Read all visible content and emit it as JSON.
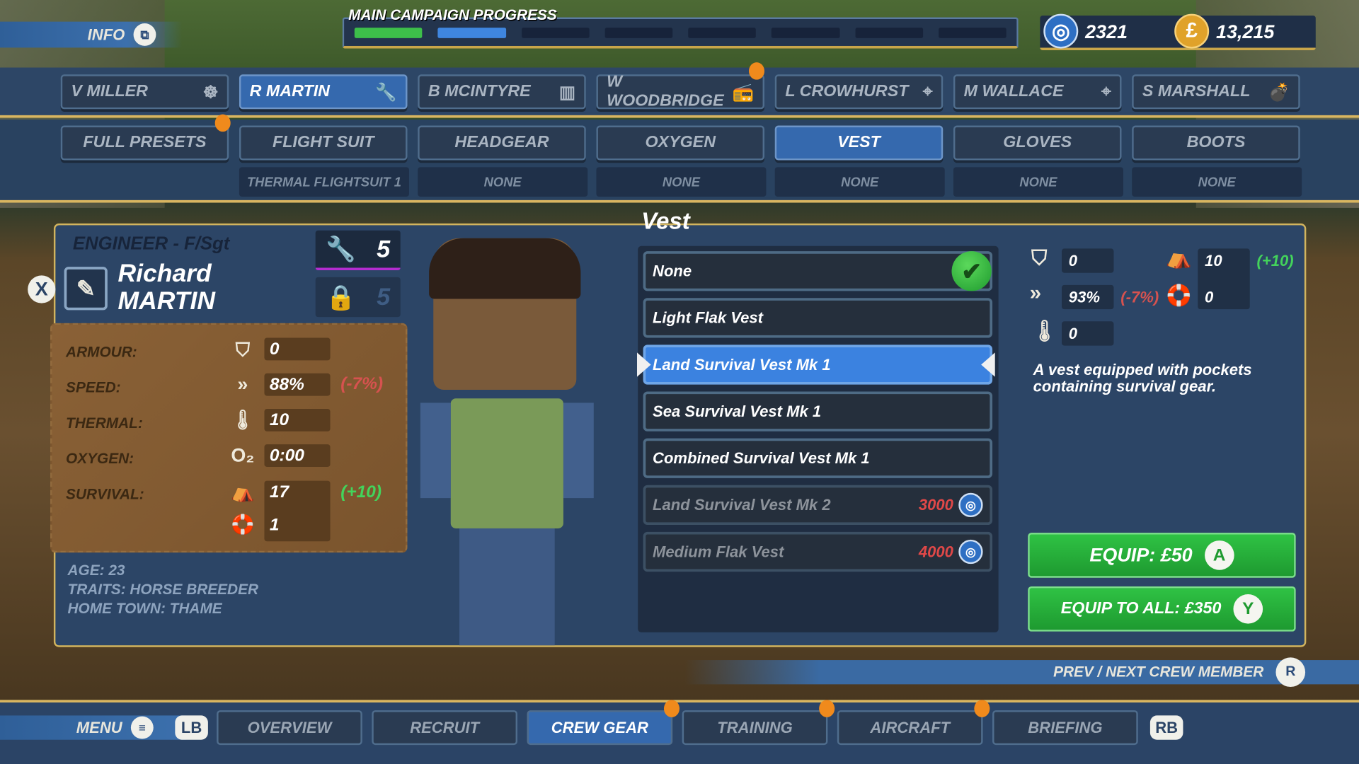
{
  "topbar": {
    "info_label": "INFO",
    "campaign_title": "MAIN CAMPAIGN PROGRESS",
    "campaign_segments_total": 8,
    "campaign_segments_complete": 1,
    "campaign_segments_in_progress": 1,
    "intel": "2321",
    "money": "13,215",
    "colors": {
      "complete": "#3dbf4a",
      "in_progress": "#3f86df"
    }
  },
  "crew_tabs": [
    {
      "label": "V MILLER",
      "icon": "steering-wheel-icon"
    },
    {
      "label": "R MARTIN",
      "icon": "wrench-icon",
      "active": true
    },
    {
      "label": "B MCINTYRE",
      "icon": "map-icon"
    },
    {
      "label": "W WOODBRIDGE",
      "icon": "radio-icon",
      "notify": true
    },
    {
      "label": "L CROWHURST",
      "icon": "crosshair-icon"
    },
    {
      "label": "M WALLACE",
      "icon": "crosshair-icon"
    },
    {
      "label": "S MARSHALL",
      "icon": "bomb-icon"
    }
  ],
  "gear_tabs": [
    {
      "label": "FULL PRESETS",
      "notify": true
    },
    {
      "label": "FLIGHT SUIT",
      "equipped": "THERMAL FLIGHTSUIT 1"
    },
    {
      "label": "HEADGEAR",
      "equipped": "NONE"
    },
    {
      "label": "OXYGEN",
      "equipped": "NONE"
    },
    {
      "label": "VEST",
      "equipped": "NONE",
      "active": true
    },
    {
      "label": "GLOVES",
      "equipped": "NONE"
    },
    {
      "label": "BOOTS",
      "equipped": "NONE"
    }
  ],
  "crew": {
    "role": "ENGINEER - F/Sgt",
    "first_name": "Richard",
    "last_name": "MARTIN",
    "skill_level": "5",
    "locked_level": "5",
    "close_button": "X",
    "stats": {
      "armour_label": "ARMOUR:",
      "armour": "0",
      "speed_label": "SPEED:",
      "speed": "88%",
      "speed_delta": "(-7%)",
      "thermal_label": "THERMAL:",
      "thermal": "10",
      "oxygen_label": "OXYGEN:",
      "oxygen": "0:00",
      "survival_label": "SURVIVAL:",
      "survival_land": "17",
      "survival_delta": "(+10)",
      "survival_sea": "1"
    },
    "age": "AGE: 23",
    "traits": "TRAITS: HORSE BREEDER",
    "home_town": "HOME TOWN: THAME"
  },
  "vest": {
    "title": "Vest",
    "items": [
      {
        "name": "None",
        "equipped": true
      },
      {
        "name": "Light Flak Vest"
      },
      {
        "name": "Land Survival Vest Mk 1",
        "selected": true
      },
      {
        "name": "Sea Survival Vest Mk 1"
      },
      {
        "name": "Combined Survival Vest Mk 1"
      },
      {
        "name": "Land Survival Vest Mk 2",
        "locked": true,
        "cost": "3000"
      },
      {
        "name": "Medium Flak Vest",
        "locked": true,
        "cost": "4000"
      }
    ],
    "preview": {
      "armour": "0",
      "speed": "93%",
      "speed_delta": "(-7%)",
      "thermal": "0",
      "survival_land": "10",
      "survival_delta": "(+10)",
      "survival_sea": "0"
    },
    "description": "A vest equipped with pockets containing survival gear.",
    "equip_label": "EQUIP: £50",
    "equip_button_glyph": "A",
    "equip_all_label": "EQUIP TO ALL: £350",
    "equip_all_button_glyph": "Y"
  },
  "prev_next": "PREV / NEXT CREW MEMBER",
  "bottom_nav": {
    "menu_label": "MENU",
    "lb": "LB",
    "rb": "RB",
    "tabs": [
      {
        "label": "OVERVIEW"
      },
      {
        "label": "RECRUIT"
      },
      {
        "label": "CREW GEAR",
        "active": true,
        "notify": true
      },
      {
        "label": "TRAINING",
        "notify": true
      },
      {
        "label": "AIRCRAFT",
        "notify": true
      },
      {
        "label": "BRIEFING"
      }
    ]
  }
}
